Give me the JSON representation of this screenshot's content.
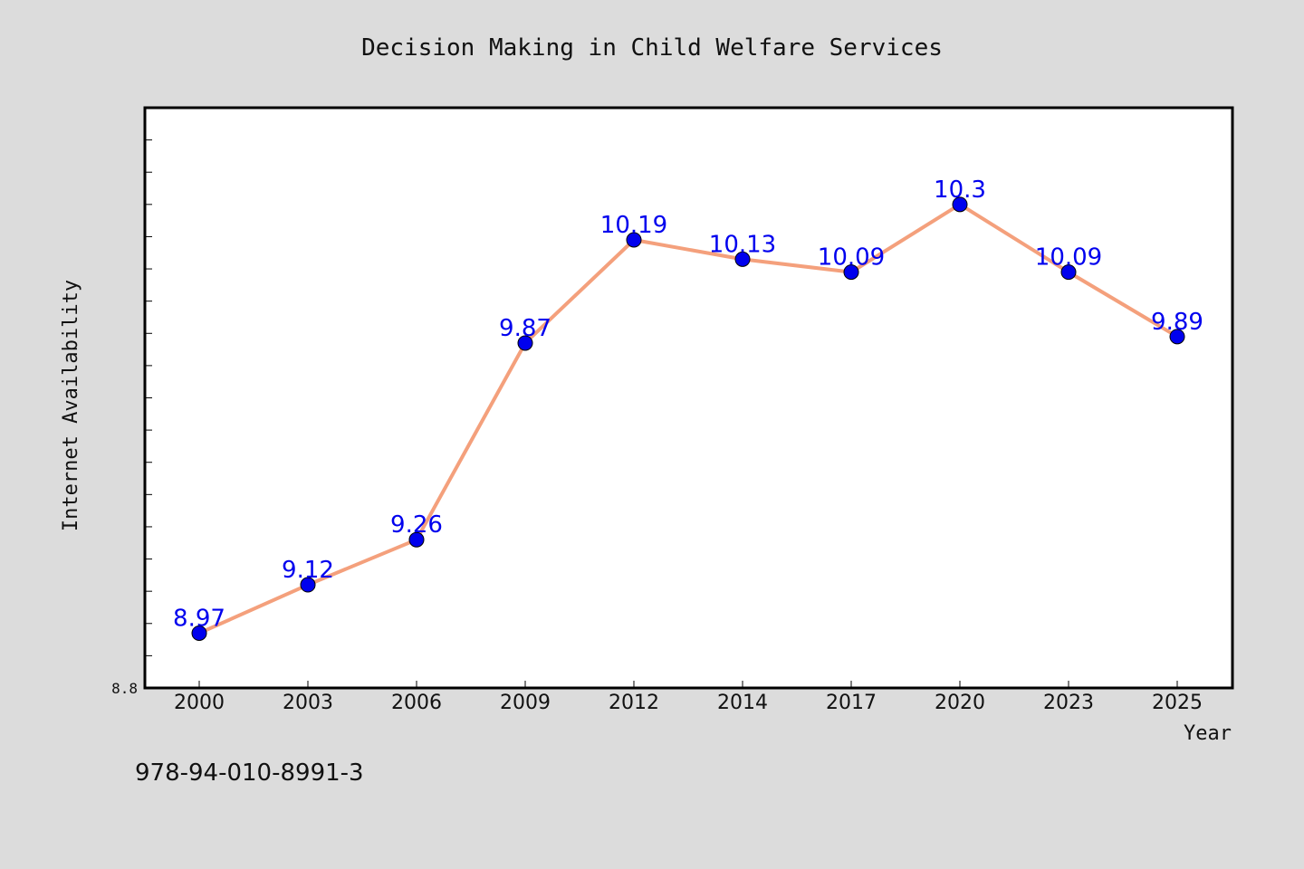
{
  "chart_data": {
    "type": "line",
    "title": "Decision Making in Child Welfare Services",
    "xlabel": "Year",
    "ylabel": "Internet Availability",
    "categories": [
      "2000",
      "2003",
      "2006",
      "2009",
      "2012",
      "2014",
      "2017",
      "2020",
      "2023",
      "2025"
    ],
    "series": [
      {
        "values": [
          8.97,
          9.12,
          9.26,
          9.87,
          10.19,
          10.13,
          10.09,
          10.3,
          10.09,
          9.89
        ]
      }
    ],
    "data_labels": [
      "8.97",
      "9.12",
      "9.26",
      "9.87",
      "10.19",
      "10.13",
      "10.09",
      "10.3",
      "10.09",
      "9.89"
    ],
    "ylim": [
      8.8,
      10.6
    ],
    "y_tick_labels": [
      "8.8"
    ],
    "grid": false,
    "line_color": "#f4a07c",
    "marker_color": "#0000ee",
    "label_color": "#0000ee"
  },
  "footer": {
    "code": "978-94-010-8991-3"
  }
}
